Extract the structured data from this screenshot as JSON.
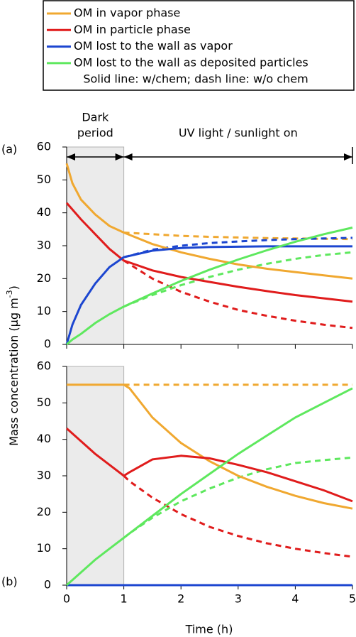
{
  "legend_note": "Solid line: w/chem; dash line: w/o chem",
  "xlabel": "Time (h)",
  "ylabel": [
    "Mass concentration (µg m",
    "-3",
    ")"
  ],
  "shaded_region": [
    0,
    1
  ],
  "annotations": {
    "dark": [
      "Dark",
      "period"
    ],
    "uv": "UV light / sunlight on"
  },
  "chart_data": [
    {
      "type": "line",
      "label": "(a)",
      "x": [
        0,
        0.1,
        0.25,
        0.5,
        0.75,
        1,
        1.5,
        2,
        2.5,
        3,
        3.5,
        4,
        4.5,
        5
      ],
      "xlim": [
        0,
        5
      ],
      "xticks": [
        0,
        1,
        2,
        3,
        4,
        5
      ],
      "xtick_labels": false,
      "ylim": [
        0,
        60
      ],
      "yticks": [
        0,
        10,
        20,
        30,
        40,
        50,
        60
      ],
      "series": [
        {
          "name": "OM in vapor phase",
          "color": "#f0a830",
          "values": [
            55,
            49,
            44,
            39.5,
            36,
            34,
            30.5,
            28,
            26,
            24.3,
            23,
            22,
            21,
            20
          ],
          "values_nochem": [
            null,
            null,
            null,
            null,
            null,
            34,
            33.5,
            33,
            32.7,
            32.5,
            32.3,
            32.2,
            32.1,
            32
          ]
        },
        {
          "name": "OM in particle phase",
          "color": "#e01c1c",
          "values": [
            43,
            41,
            38,
            33.5,
            29,
            25.5,
            22.5,
            20.5,
            19,
            17.5,
            16.2,
            15,
            14,
            13
          ],
          "values_nochem": [
            null,
            null,
            null,
            null,
            null,
            25.5,
            20,
            16,
            13,
            10.5,
            8.7,
            7.2,
            6,
            5
          ]
        },
        {
          "name": "OM lost to the wall as vapor",
          "color": "#1c46d0",
          "values": [
            0,
            6,
            12,
            18.5,
            23.5,
            26.5,
            28.5,
            29.3,
            29.6,
            29.7,
            29.8,
            29.8,
            29.8,
            29.8
          ],
          "values_nochem": [
            null,
            null,
            null,
            null,
            null,
            26.5,
            28.8,
            30,
            30.8,
            31.3,
            31.7,
            32,
            32.2,
            32.4
          ]
        },
        {
          "name": "OM lost to the wall as deposited particles",
          "color": "#5ee85e",
          "values": [
            0,
            1.5,
            3.2,
            6.5,
            9.2,
            11.5,
            15.5,
            19.3,
            22.7,
            25.8,
            28.6,
            31.2,
            33.5,
            35.5
          ],
          "values_nochem": [
            null,
            null,
            null,
            null,
            null,
            11.5,
            15,
            18,
            20.5,
            22.7,
            24.5,
            26,
            27.2,
            28
          ]
        }
      ]
    },
    {
      "type": "line",
      "label": "(b)",
      "x": [
        0,
        0.25,
        0.5,
        0.75,
        1,
        1.1,
        1.5,
        2,
        2.5,
        3,
        3.5,
        4,
        4.5,
        5
      ],
      "xlim": [
        0,
        5
      ],
      "xticks": [
        0,
        1,
        2,
        3,
        4,
        5
      ],
      "xtick_labels": true,
      "ylim": [
        0,
        60
      ],
      "yticks": [
        0,
        10,
        20,
        30,
        40,
        50,
        60
      ],
      "series": [
        {
          "color": "#f0a830",
          "values": [
            55,
            55,
            55,
            55,
            55,
            54,
            46,
            39,
            34,
            30,
            27,
            24.5,
            22.5,
            21
          ],
          "values_nochem": [
            null,
            null,
            null,
            null,
            55,
            55,
            55,
            55,
            55,
            55,
            55,
            55,
            55,
            55
          ]
        },
        {
          "color": "#e01c1c",
          "values": [
            43,
            39.5,
            36,
            33,
            30,
            31,
            34.5,
            35.5,
            34.8,
            33,
            31,
            28.5,
            26,
            23
          ],
          "values_nochem": [
            null,
            null,
            null,
            null,
            30,
            28.5,
            24,
            19.5,
            16,
            13.5,
            11.5,
            10,
            8.8,
            7.8
          ]
        },
        {
          "color": "#1c46d0",
          "values": [
            0,
            0,
            0,
            0,
            0,
            0,
            0,
            0,
            0,
            0,
            0,
            0,
            0,
            0
          ]
        },
        {
          "color": "#5ee85e",
          "values": [
            0,
            3.5,
            7,
            10,
            13,
            14.2,
            19,
            25,
            30.5,
            36,
            41,
            46,
            50,
            54
          ],
          "values_nochem": [
            null,
            null,
            null,
            null,
            13,
            14.2,
            18.5,
            23,
            26.5,
            29.5,
            31.8,
            33.5,
            34.3,
            35
          ]
        }
      ]
    }
  ]
}
